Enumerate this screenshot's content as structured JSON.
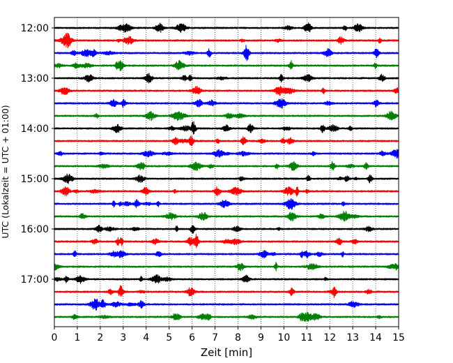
{
  "chart_data": {
    "type": "line",
    "title": "",
    "xlabel": "Zeit  [min]",
    "ylabel": "UTC (Lokalzeit = UTC + 01:00)",
    "xlim": [
      0,
      15
    ],
    "x_ticks": [
      0,
      1,
      2,
      3,
      4,
      5,
      6,
      7,
      8,
      9,
      10,
      11,
      12,
      13,
      14,
      15
    ],
    "y_ticks": [
      "12:00",
      "13:00",
      "14:00",
      "15:00",
      "16:00",
      "17:00"
    ],
    "grid": "vertical dotted lines at each minute",
    "trace_interval_minutes": 15,
    "first_trace_time": "12:00",
    "last_trace_time": "17:45",
    "color_cycle": [
      "#000000",
      "#ff0000",
      "#0000ff",
      "#008000"
    ],
    "series": [
      {
        "start": "12:00",
        "color": "#000000"
      },
      {
        "start": "12:15",
        "color": "#ff0000"
      },
      {
        "start": "12:30",
        "color": "#0000ff"
      },
      {
        "start": "12:45",
        "color": "#008000"
      },
      {
        "start": "13:00",
        "color": "#000000"
      },
      {
        "start": "13:15",
        "color": "#ff0000"
      },
      {
        "start": "13:30",
        "color": "#0000ff"
      },
      {
        "start": "13:45",
        "color": "#008000"
      },
      {
        "start": "14:00",
        "color": "#000000"
      },
      {
        "start": "14:15",
        "color": "#ff0000"
      },
      {
        "start": "14:30",
        "color": "#0000ff"
      },
      {
        "start": "14:45",
        "color": "#008000"
      },
      {
        "start": "15:00",
        "color": "#000000"
      },
      {
        "start": "15:15",
        "color": "#ff0000"
      },
      {
        "start": "15:30",
        "color": "#0000ff"
      },
      {
        "start": "15:45",
        "color": "#008000"
      },
      {
        "start": "16:00",
        "color": "#000000"
      },
      {
        "start": "16:15",
        "color": "#ff0000"
      },
      {
        "start": "16:30",
        "color": "#0000ff"
      },
      {
        "start": "16:45",
        "color": "#008000"
      },
      {
        "start": "17:00",
        "color": "#000000"
      },
      {
        "start": "17:15",
        "color": "#ff0000"
      },
      {
        "start": "17:30",
        "color": "#0000ff"
      },
      {
        "start": "17:45",
        "color": "#008000"
      }
    ]
  }
}
